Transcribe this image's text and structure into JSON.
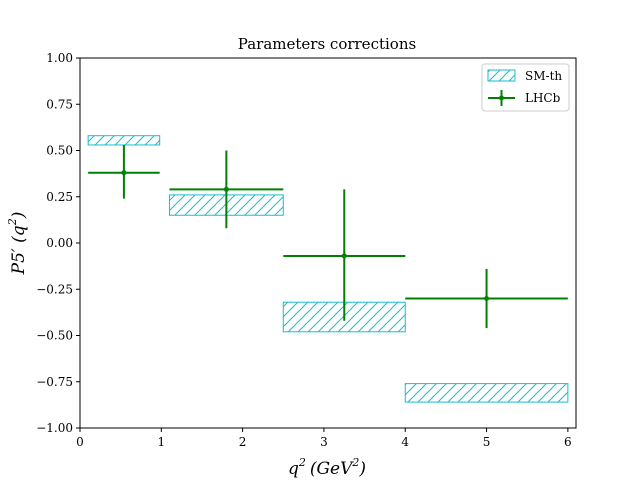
{
  "chart_data": {
    "type": "errorbar+band",
    "title": "Parameters corrections",
    "xlabel_base": "q",
    "xlabel_sup": "2",
    "xlabel_unit_open": "(GeV",
    "xlabel_unit_sup": "2",
    "xlabel_unit_close": ")",
    "ylabel_base": "P5′ (q",
    "ylabel_sup": "2",
    "ylabel_close": ")",
    "xlim": [
      0,
      6.1
    ],
    "ylim": [
      -1.0,
      1.0
    ],
    "xticks": [
      0,
      1,
      2,
      3,
      4,
      5,
      6
    ],
    "xtick_labels": [
      "0",
      "1",
      "2",
      "3",
      "4",
      "5",
      "6"
    ],
    "yticks": [
      -1.0,
      -0.75,
      -0.5,
      -0.25,
      0.0,
      0.25,
      0.5,
      0.75,
      1.0
    ],
    "ytick_labels": [
      "−1.00",
      "−0.75",
      "−0.50",
      "−0.25",
      "0.00",
      "0.25",
      "0.50",
      "0.75",
      "1.00"
    ],
    "legend_position": "top-right",
    "series": [
      {
        "name": "SM-th",
        "kind": "band",
        "color": "#17becf",
        "bins": [
          {
            "x_low": 0.1,
            "x_high": 0.98,
            "y_low": 0.53,
            "y_high": 0.58
          },
          {
            "x_low": 1.1,
            "x_high": 2.5,
            "y_low": 0.15,
            "y_high": 0.26
          },
          {
            "x_low": 2.5,
            "x_high": 4.0,
            "y_low": -0.48,
            "y_high": -0.32
          },
          {
            "x_low": 4.0,
            "x_high": 6.0,
            "y_low": -0.86,
            "y_high": -0.76
          }
        ]
      },
      {
        "name": "LHCb",
        "kind": "errorbar",
        "color": "#008000",
        "points": [
          {
            "x": 0.54,
            "x_low": 0.1,
            "x_high": 0.98,
            "y": 0.38,
            "y_err_low": 0.14,
            "y_err_high": 0.15
          },
          {
            "x": 1.8,
            "x_low": 1.1,
            "x_high": 2.5,
            "y": 0.29,
            "y_err_low": 0.21,
            "y_err_high": 0.21
          },
          {
            "x": 3.25,
            "x_low": 2.5,
            "x_high": 4.0,
            "y": -0.07,
            "y_err_low": 0.35,
            "y_err_high": 0.36
          },
          {
            "x": 5.0,
            "x_low": 4.0,
            "x_high": 6.0,
            "y": -0.3,
            "y_err_low": 0.16,
            "y_err_high": 0.16
          }
        ]
      }
    ]
  }
}
